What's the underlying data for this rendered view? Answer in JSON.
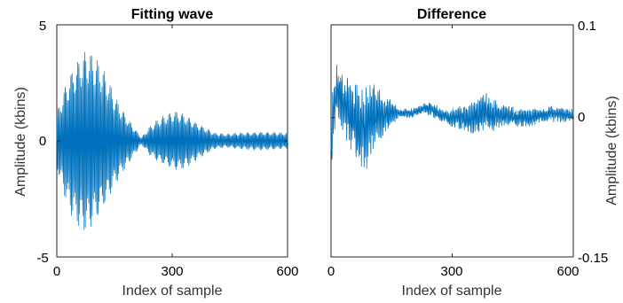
{
  "chart_data": [
    {
      "type": "line",
      "title": "Fitting wave",
      "xlabel": "Index of sample",
      "ylabel": "Amplitude (kbins)",
      "xlim": [
        0,
        600
      ],
      "ylim": [
        -5,
        5
      ],
      "xticks": [
        0,
        300,
        600
      ],
      "yticks": [
        -5,
        0,
        5
      ],
      "ytick_side": "left",
      "grid": false,
      "color": "#0072BD",
      "envelope": {
        "x": [
          0,
          20,
          40,
          60,
          75,
          90,
          110,
          130,
          150,
          170,
          190,
          210,
          220,
          240,
          260,
          280,
          300,
          315,
          330,
          350,
          370,
          390,
          410,
          440,
          470,
          500,
          530,
          560,
          600
        ],
        "amplitude": [
          1.2,
          2.4,
          3.3,
          3.8,
          4.0,
          3.8,
          3.4,
          2.8,
          2.0,
          1.4,
          0.9,
          0.4,
          0.15,
          0.6,
          0.9,
          1.1,
          1.25,
          1.3,
          1.2,
          1.0,
          0.75,
          0.55,
          0.35,
          0.3,
          0.35,
          0.38,
          0.4,
          0.38,
          0.35
        ]
      }
    },
    {
      "type": "line",
      "title": "Difference",
      "xlabel": "Index of sample",
      "ylabel": "Amplitude (kbins)",
      "xlim": [
        0,
        600
      ],
      "ylim": [
        -0.15,
        0.1
      ],
      "xticks": [
        0,
        300,
        600
      ],
      "yticks": [
        -0.15,
        0,
        0.1
      ],
      "ytick_labels": [
        "-0.15",
        "0",
        "0.1"
      ],
      "ytick_side": "right",
      "grid": false,
      "color": "#0072BD",
      "envelope": {
        "x": [
          0,
          5,
          15,
          30,
          50,
          70,
          90,
          110,
          130,
          150,
          170,
          200,
          230,
          250,
          270,
          300,
          330,
          360,
          380,
          400,
          430,
          460,
          490,
          520,
          550,
          580,
          600
        ],
        "low": [
          -0.09,
          -0.03,
          0.0,
          -0.02,
          -0.04,
          -0.05,
          -0.06,
          -0.03,
          -0.02,
          -0.01,
          0.0,
          0.0,
          0.005,
          0.0,
          -0.005,
          -0.01,
          -0.015,
          -0.02,
          -0.015,
          -0.015,
          -0.01,
          -0.01,
          -0.01,
          -0.005,
          -0.005,
          -0.005,
          -0.005
        ],
        "high": [
          0.02,
          0.04,
          0.06,
          0.05,
          0.045,
          0.04,
          0.035,
          0.04,
          0.025,
          0.02,
          0.01,
          0.01,
          0.015,
          0.02,
          0.01,
          0.01,
          0.015,
          0.02,
          0.03,
          0.02,
          0.015,
          0.01,
          0.01,
          0.01,
          0.015,
          0.01,
          0.01
        ]
      }
    }
  ]
}
